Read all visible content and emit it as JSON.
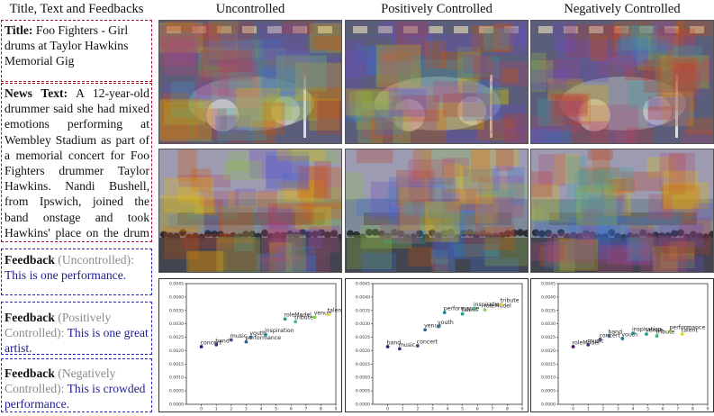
{
  "headers": {
    "col0": "Title, Text and Feedbacks",
    "col1": "Uncontrolled",
    "col2": "Positively Controlled",
    "col3": "Negatively Controlled"
  },
  "title_box": {
    "label": "Title:",
    "text": "Foo Fighters - Girl drums at Taylor Hawkins Memorial Gig"
  },
  "news_box": {
    "label": "News Text:",
    "text": "A 12-year-old drummer said she had mixed emotions performing at Wembley Stadium as part of a memorial concert for Foo Fighters drummer Taylor Hawkins. Nandi Bushell, from Ipswich, joined the band onstage and took Hawkins' place on the drum stool for..."
  },
  "feedback_uncontrolled": {
    "label": "Feedback",
    "tag": "(Uncontrolled):",
    "text": "This is one performance."
  },
  "feedback_positive": {
    "label": "Feedback",
    "tag": "(Positively Controlled):",
    "text": "This is one great artist."
  },
  "feedback_negative": {
    "label": "Feedback",
    "tag": "(Negatively Controlled):",
    "text": "This is crowded performance."
  },
  "palette": {
    "purple": "#45107a",
    "blue": "#3a5c9c",
    "teal": "#23908c",
    "green": "#54c15f",
    "yellow": "#e3d92a"
  },
  "chart_data": [
    {
      "type": "scatter",
      "title": "Uncontrolled",
      "xlim": [
        -1,
        9
      ],
      "ylim": [
        0,
        0.0045
      ],
      "xticks": [
        "0",
        "1",
        "2",
        "3",
        "4",
        "5",
        "6",
        "7",
        "8",
        "9"
      ],
      "yticks": [
        "0.0000",
        "0.0005",
        "0.0010",
        "0.0015",
        "0.0020",
        "0.0025",
        "0.0030",
        "0.0035",
        "0.0040",
        "0.0045"
      ],
      "points": [
        {
          "label": "concert",
          "x": 0,
          "y": 0.00215
        },
        {
          "label": "band",
          "x": 1,
          "y": 0.00222
        },
        {
          "label": "music",
          "x": 2,
          "y": 0.0024
        },
        {
          "label": "performance",
          "x": 3,
          "y": 0.00233
        },
        {
          "label": "youth",
          "x": 3.3,
          "y": 0.0025
        },
        {
          "label": "inspiration",
          "x": 4.3,
          "y": 0.0026
        },
        {
          "label": "roleModel",
          "x": 5.6,
          "y": 0.00318
        },
        {
          "label": "tribute",
          "x": 6.3,
          "y": 0.00308
        },
        {
          "label": "venue",
          "x": 7.6,
          "y": 0.00325
        },
        {
          "label": "talent",
          "x": 8.5,
          "y": 0.00335
        }
      ]
    },
    {
      "type": "scatter",
      "title": "Positively Controlled",
      "xlim": [
        -1,
        9
      ],
      "ylim": [
        0,
        0.0045
      ],
      "xticks": [
        "0",
        "1",
        "2",
        "3",
        "4",
        "5",
        "6",
        "7",
        "8",
        "9"
      ],
      "yticks": [
        "0.0000",
        "0.0005",
        "0.0010",
        "0.0015",
        "0.0020",
        "0.0025",
        "0.0030",
        "0.0035",
        "0.0040",
        "0.0045"
      ],
      "points": [
        {
          "label": "band",
          "x": 0,
          "y": 0.00215
        },
        {
          "label": "music",
          "x": 0.8,
          "y": 0.00207
        },
        {
          "label": "concert",
          "x": 2,
          "y": 0.00218
        },
        {
          "label": "venue",
          "x": 2.5,
          "y": 0.00278
        },
        {
          "label": "youth",
          "x": 3.4,
          "y": 0.0029
        },
        {
          "label": "performance",
          "x": 3.8,
          "y": 0.00342
        },
        {
          "label": "talent",
          "x": 5,
          "y": 0.00337
        },
        {
          "label": "inspiration",
          "x": 5.8,
          "y": 0.00358
        },
        {
          "label": "roleModel",
          "x": 6.5,
          "y": 0.00352
        },
        {
          "label": "tribute",
          "x": 7.6,
          "y": 0.00372
        }
      ]
    },
    {
      "type": "scatter",
      "title": "Negatively Controlled",
      "xlim": [
        -1,
        9
      ],
      "ylim": [
        0,
        0.0045
      ],
      "xticks": [
        "0",
        "1",
        "2",
        "3",
        "4",
        "5",
        "6",
        "7",
        "8",
        "9"
      ],
      "yticks": [
        "0.0000",
        "0.0005",
        "0.0010",
        "0.0015",
        "0.0020",
        "0.0025",
        "0.0030",
        "0.0035",
        "0.0040",
        "0.0045"
      ],
      "points": [
        {
          "label": "roleModel",
          "x": 0,
          "y": 0.00215
        },
        {
          "label": "music",
          "x": 1,
          "y": 0.00222
        },
        {
          "label": "concert",
          "x": 1.8,
          "y": 0.00242
        },
        {
          "label": "band",
          "x": 2.4,
          "y": 0.00255
        },
        {
          "label": "youth",
          "x": 3.3,
          "y": 0.00245
        },
        {
          "label": "inspiration",
          "x": 4,
          "y": 0.00265
        },
        {
          "label": "venue",
          "x": 4.9,
          "y": 0.00262
        },
        {
          "label": "tribute",
          "x": 5.6,
          "y": 0.00255
        },
        {
          "label": "performance",
          "x": 6.5,
          "y": 0.00272
        },
        {
          "label": "talent",
          "x": 7.3,
          "y": 0.00262
        }
      ]
    }
  ]
}
